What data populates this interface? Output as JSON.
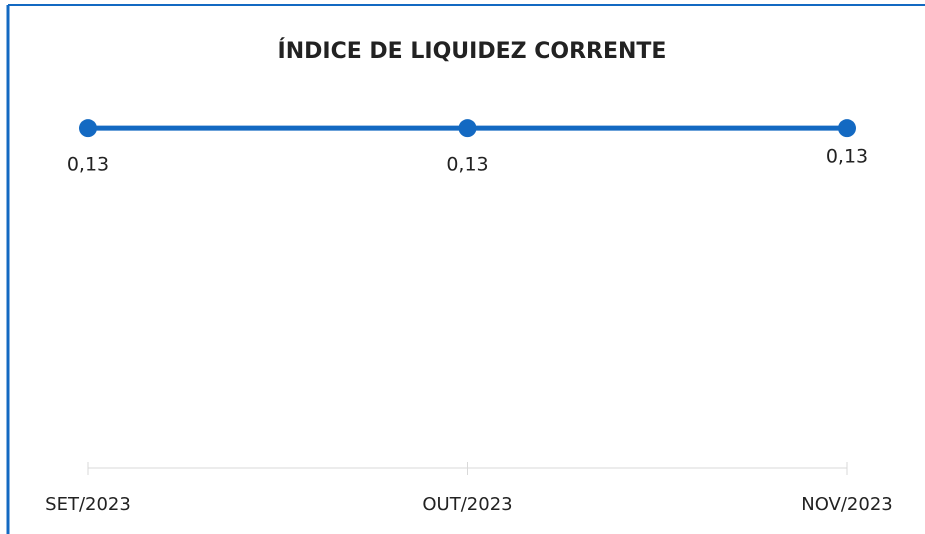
{
  "chart_data": {
    "type": "line",
    "title": "ÍNDICE DE LIQUIDEZ CORRENTE",
    "categories": [
      "SET/2023",
      "OUT/2023",
      "NOV/2023"
    ],
    "series": [
      {
        "name": "Índice de Liquidez Corrente",
        "color": "#1369c2",
        "values": [
          0.13,
          0.13,
          0.13
        ],
        "value_labels": [
          "0,13",
          "0,13",
          "0,13"
        ]
      }
    ],
    "ylim": [
      0,
      0.14
    ]
  }
}
